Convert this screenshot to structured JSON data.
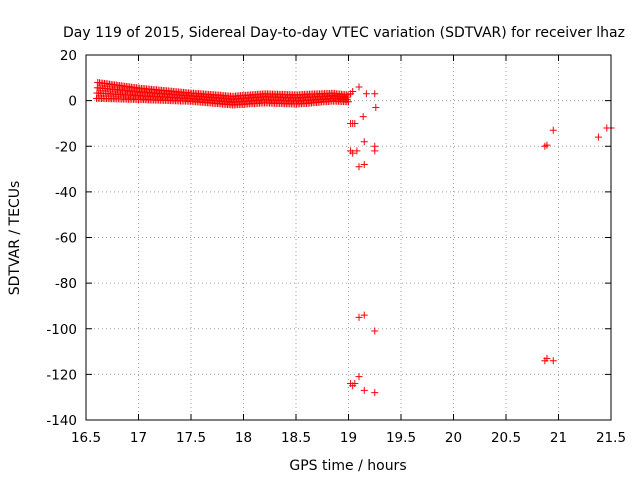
{
  "chart_data": {
    "type": "scatter",
    "title": "Day 119 of 2015, Sidereal Day-to-day VTEC variation (SDTVAR) for receiver lhaz",
    "xlabel": "GPS time / hours",
    "ylabel": "SDTVAR / TECUs",
    "xlim": [
      16.5,
      21.5
    ],
    "ylim": [
      -140,
      20
    ],
    "xticks": [
      "16.5",
      "17",
      "17.5",
      "18",
      "18.5",
      "19",
      "19.5",
      "20",
      "20.5",
      "21",
      "21.5"
    ],
    "yticks": [
      "20",
      "0",
      "-20",
      "-40",
      "-60",
      "-80",
      "-100",
      "-120",
      "-140"
    ],
    "grid": true,
    "marker": "+",
    "color": "#ff0000",
    "dense_band": {
      "x_start": 16.6,
      "x_end": 19.0,
      "step": 0.004,
      "center": [
        [
          16.6,
          4.5
        ],
        [
          17.0,
          3.0
        ],
        [
          17.5,
          1.5
        ],
        [
          17.9,
          0.0
        ],
        [
          18.2,
          1.0
        ],
        [
          18.5,
          0.5
        ],
        [
          18.85,
          1.5
        ],
        [
          19.0,
          1.0
        ]
      ],
      "halfwidth": [
        [
          16.6,
          3.5
        ],
        [
          17.0,
          2.5
        ],
        [
          17.5,
          1.8
        ],
        [
          18.2,
          2.0
        ],
        [
          18.6,
          2.0
        ],
        [
          19.0,
          1.5
        ]
      ]
    },
    "points": [
      [
        19.02,
        3
      ],
      [
        19.04,
        4
      ],
      [
        19.1,
        6
      ],
      [
        19.17,
        3
      ],
      [
        19.25,
        3
      ],
      [
        19.26,
        -3
      ],
      [
        19.14,
        -7
      ],
      [
        19.02,
        -10
      ],
      [
        19.04,
        -10
      ],
      [
        19.06,
        -10
      ],
      [
        19.15,
        -18
      ],
      [
        19.25,
        -20
      ],
      [
        19.02,
        -22
      ],
      [
        19.04,
        -23
      ],
      [
        19.08,
        -22
      ],
      [
        19.25,
        -22
      ],
      [
        19.15,
        -28
      ],
      [
        19.1,
        -29
      ],
      [
        19.1,
        -95
      ],
      [
        19.15,
        -94
      ],
      [
        19.25,
        -101
      ],
      [
        19.1,
        -121
      ],
      [
        19.02,
        -124
      ],
      [
        19.04,
        -125
      ],
      [
        19.06,
        -124
      ],
      [
        19.15,
        -127
      ],
      [
        19.25,
        -128
      ],
      [
        20.87,
        -20
      ],
      [
        20.89,
        -19.5
      ],
      [
        20.95,
        -13
      ],
      [
        20.87,
        -114
      ],
      [
        20.89,
        -113
      ],
      [
        20.95,
        -114
      ],
      [
        21.38,
        -16
      ],
      [
        21.46,
        -12
      ],
      [
        21.5,
        -12
      ]
    ]
  }
}
